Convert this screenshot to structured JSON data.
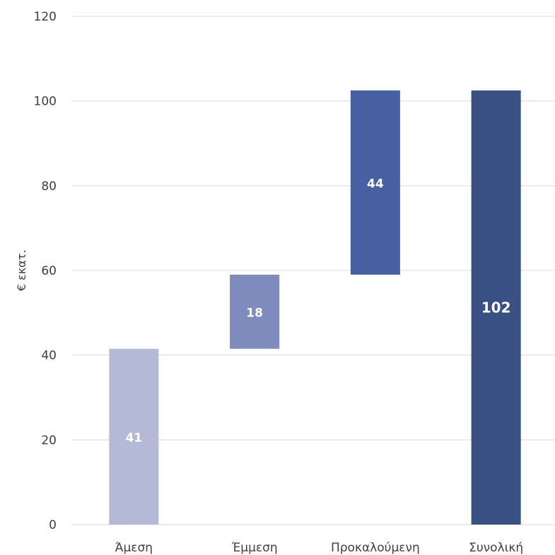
{
  "chart_data": {
    "type": "bar",
    "subtype": "waterfall",
    "categories": [
      "Άμεση",
      "Έμμεση",
      "Προκαλούμενη",
      "Συνολική"
    ],
    "values": [
      41,
      18,
      44,
      102
    ],
    "bar_ranges": [
      [
        0,
        41.5
      ],
      [
        41.5,
        59
      ],
      [
        59,
        102.5
      ],
      [
        0,
        102.5
      ]
    ],
    "data_labels": [
      "41",
      "18",
      "44",
      "102"
    ],
    "colors": [
      "#b3b9d6",
      "#7f8bbd",
      "#4760a2",
      "#395084"
    ],
    "title": "",
    "xlabel": "",
    "ylabel": "€ εκατ.",
    "ylim": [
      0,
      120
    ],
    "yticks": [
      "0",
      "20",
      "40",
      "60",
      "80",
      "100",
      "120"
    ],
    "grid": true,
    "legend": "none"
  }
}
